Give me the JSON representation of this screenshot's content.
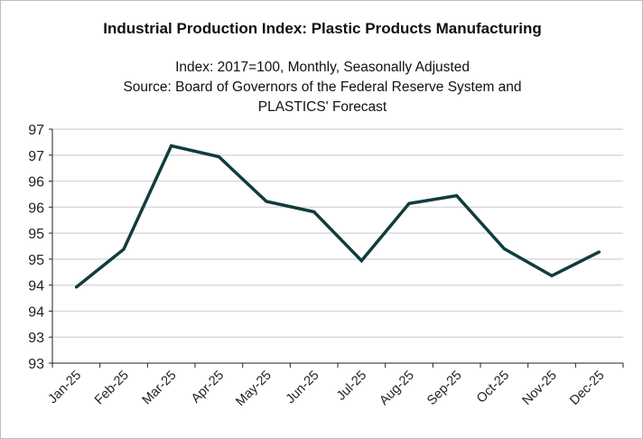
{
  "chart_data": {
    "type": "line",
    "title": "Industrial Production Index: Plastic Products Manufacturing",
    "subtitle_lines": [
      "Index: 2017=100, Monthly, Seasonally Adjusted",
      "Source: Board of Governors of the Federal Reserve System and",
      "PLASTICS' Forecast"
    ],
    "xlabel": "",
    "ylabel": "",
    "categories": [
      "Jan-25",
      "Feb-25",
      "Mar-25",
      "Apr-25",
      "May-25",
      "Jun-25",
      "Jul-25",
      "Aug-25",
      "Sep-25",
      "Oct-25",
      "Nov-25",
      "Dec-25"
    ],
    "series": [
      {
        "values": [
          93.96,
          94.69,
          96.68,
          96.47,
          95.61,
          95.41,
          94.47,
          95.57,
          95.72,
          94.7,
          94.18,
          94.64
        ],
        "color": "#123c3c"
      }
    ],
    "ylim": [
      92.5,
      97.0
    ],
    "ytick_values": [
      92.5,
      93,
      93.5,
      94,
      94.5,
      95,
      95.5,
      96,
      96.5,
      97
    ],
    "ytick_labels": [
      "93",
      "93",
      "94",
      "94",
      "95",
      "95",
      "96",
      "96",
      "97",
      "97"
    ],
    "grid": true,
    "gridline_color": "#d9d9d9"
  }
}
